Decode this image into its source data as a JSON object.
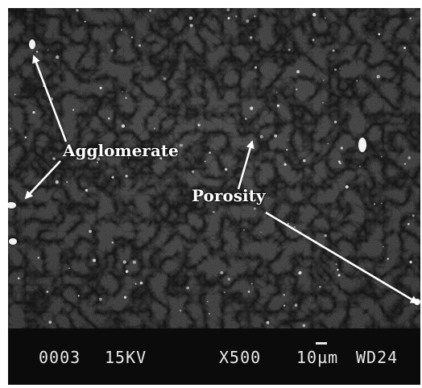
{
  "image": {
    "subject": "SEM micrograph",
    "colors": {
      "background": "#2b2b2b",
      "databar": "#0b0b0b",
      "text": "#e8e8e8",
      "annotation": "#ffffff"
    }
  },
  "annotations": {
    "agglomerate": "Agglomerate",
    "porosity": "Porosity"
  },
  "databar": {
    "frame_no": "0003",
    "voltage": "15KV",
    "magnification": "X500",
    "scale": "10µm",
    "working_distance": "WD24"
  }
}
